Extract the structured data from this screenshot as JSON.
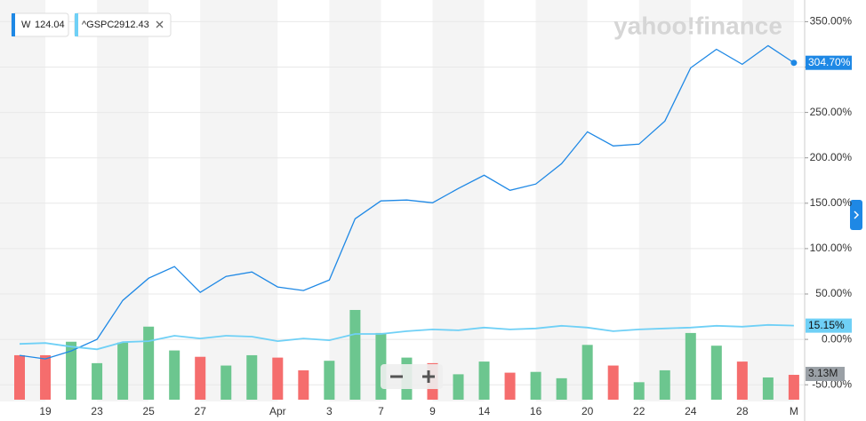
{
  "chart_data": {
    "type": "line",
    "watermark": "yahoo!finance",
    "categories": [
      null,
      "19",
      null,
      "23",
      null,
      "25",
      null,
      "27",
      null,
      null,
      "Apr",
      null,
      "3",
      null,
      "7",
      null,
      "9",
      null,
      "14",
      null,
      "16",
      null,
      "20",
      null,
      "22",
      null,
      "24",
      null,
      "28",
      null,
      "M"
    ],
    "ylim": [
      -86,
      368
    ],
    "yticks": [
      {
        "value": 350,
        "label": "350.00%"
      },
      {
        "value": 300,
        "label": "300.00%"
      },
      {
        "value": 250,
        "label": "250.00%"
      },
      {
        "value": 200,
        "label": "200.00%"
      },
      {
        "value": 150,
        "label": "150.00%"
      },
      {
        "value": 100,
        "label": "100.00%"
      },
      {
        "value": 50,
        "label": "50.00%"
      },
      {
        "value": 0,
        "label": "0.00%"
      },
      {
        "value": -50,
        "label": "-50.00%"
      }
    ],
    "grid": true,
    "series": [
      {
        "name": "W",
        "last_price": 124.04,
        "color": "#1e88e5",
        "values": [
          -17.6,
          -21.5,
          -12.7,
          0,
          43,
          67.4,
          80.2,
          51.8,
          69.4,
          74.3,
          57.7,
          53.8,
          65.5,
          132.9,
          152.5,
          153.5,
          150.5,
          166.2,
          180.8,
          164.2,
          171.1,
          193.5,
          228.7,
          213.1,
          215.1,
          240.5,
          299.1,
          319.6,
          303,
          323.6,
          304.7
        ],
        "value_labels": [
          null,
          null,
          null,
          null,
          null,
          null,
          null,
          null,
          null,
          null,
          null,
          null,
          null,
          null,
          null,
          null,
          null,
          null,
          null,
          null,
          null,
          null,
          null,
          null,
          null,
          null,
          null,
          null,
          null,
          null,
          "304.70%"
        ]
      },
      {
        "name": "^GSPC",
        "last_price": 2912.43,
        "color": "#6fd0f6",
        "values": [
          -5,
          -4,
          -8,
          -11,
          -3,
          -2,
          4,
          1,
          4,
          3,
          -2,
          1,
          -1,
          6,
          6,
          9,
          11,
          10,
          13,
          11,
          12,
          15,
          13,
          9,
          11,
          12,
          13,
          15,
          14,
          16,
          15.15
        ],
        "value_labels": [
          null,
          null,
          null,
          null,
          null,
          null,
          null,
          null,
          null,
          null,
          null,
          null,
          null,
          null,
          null,
          null,
          null,
          null,
          null,
          null,
          null,
          null,
          null,
          null,
          null,
          null,
          null,
          null,
          null,
          null,
          "15.15%"
        ]
      }
    ],
    "volume": {
      "ylim": [
        0,
        50
      ],
      "values": [
        5.6,
        5.6,
        7.3,
        4.6,
        7.2,
        9.2,
        6.2,
        5.4,
        4.3,
        5.6,
        5.3,
        3.7,
        4.9,
        11.3,
        8.4,
        5.3,
        4.6,
        3.2,
        4.8,
        3.4,
        3.5,
        2.7,
        6.9,
        4.3,
        2.2,
        3.7,
        8.4,
        6.8,
        4.8,
        2.8,
        3.13
      ],
      "colors": [
        "#f56d6d",
        "#f56d6d",
        "#6cc68f",
        "#6cc68f",
        "#6cc68f",
        "#6cc68f",
        "#6cc68f",
        "#f56d6d",
        "#6cc68f",
        "#6cc68f",
        "#f56d6d",
        "#f56d6d",
        "#6cc68f",
        "#6cc68f",
        "#6cc68f",
        "#6cc68f",
        "#f56d6d",
        "#6cc68f",
        "#6cc68f",
        "#f56d6d",
        "#6cc68f",
        "#6cc68f",
        "#6cc68f",
        "#f56d6d",
        "#6cc68f",
        "#6cc68f",
        "#6cc68f",
        "#6cc68f",
        "#f56d6d",
        "#6cc68f",
        "#f56d6d"
      ],
      "value_labels": [
        null,
        null,
        null,
        null,
        null,
        null,
        null,
        null,
        null,
        null,
        null,
        null,
        null,
        null,
        null,
        null,
        null,
        null,
        null,
        null,
        null,
        null,
        null,
        null,
        null,
        null,
        null,
        null,
        null,
        null,
        "3.13M"
      ]
    }
  }
}
